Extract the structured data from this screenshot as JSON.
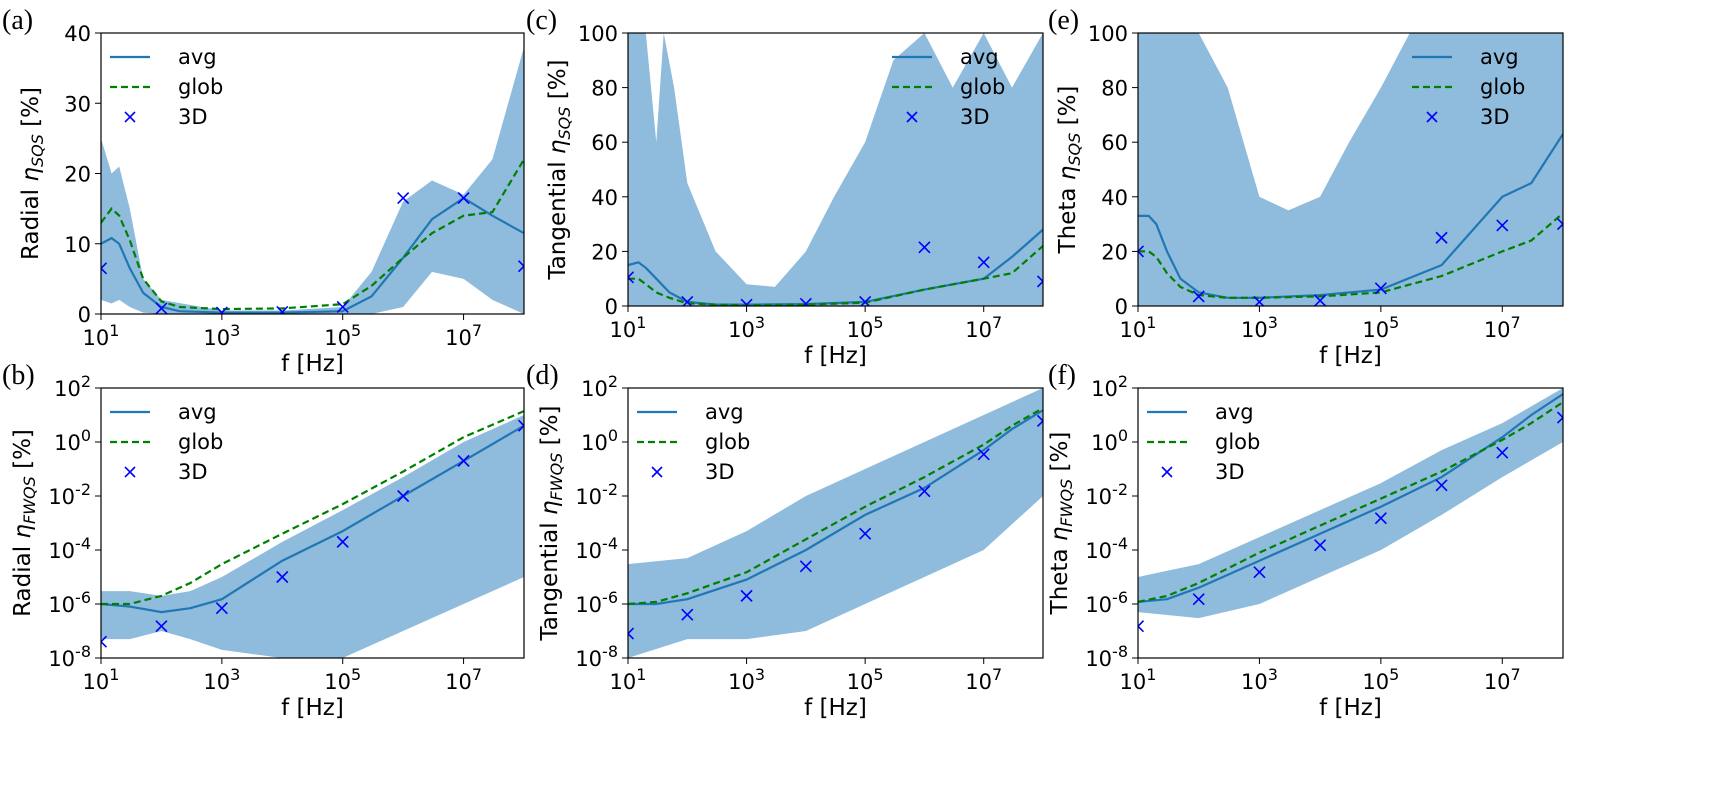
{
  "colors": {
    "avg": "#1f77b4",
    "glob": "#008000",
    "d3": "#0000ff",
    "band": "#8fbbdc"
  },
  "legend": {
    "avg": "avg",
    "glob": "glob",
    "d3": "3D"
  },
  "chart_data": [
    {
      "panel": "(a)",
      "type": "line",
      "xscale": "log",
      "yscale": "linear",
      "xlabel": "f [Hz]",
      "ylabel": {
        "prefix": "Radial ",
        "symbol": "η",
        "sub": "SQS",
        "suffix": " [%]"
      },
      "xlim": [
        10,
        100000000
      ],
      "ylim": [
        0,
        40
      ],
      "xticks": [
        "10^1",
        "10^3",
        "10^5",
        "10^7"
      ],
      "yticks": [
        "0",
        "10",
        "20",
        "30",
        "40"
      ],
      "legend_position": "top-left",
      "grid": false,
      "series": [
        {
          "name": "avg",
          "style": "solid",
          "x": [
            10,
            15,
            20,
            30,
            50,
            100,
            200,
            1000,
            10000,
            100000,
            300000,
            1000000,
            3000000,
            10000000,
            30000000,
            100000000
          ],
          "y": [
            10,
            10.8,
            10,
            6.5,
            3,
            1,
            0.4,
            0.2,
            0.2,
            0.4,
            2.5,
            8,
            13.5,
            16.5,
            14,
            11.5
          ]
        },
        {
          "name": "glob",
          "style": "dashed",
          "x": [
            10,
            15,
            20,
            30,
            50,
            100,
            200,
            1000,
            10000,
            100000,
            300000,
            1000000,
            3000000,
            10000000,
            30000000,
            100000000
          ],
          "y": [
            13,
            15,
            14,
            10.5,
            5,
            1.8,
            1,
            0.7,
            0.8,
            1.4,
            4,
            8,
            11.5,
            14,
            14.5,
            22
          ]
        },
        {
          "name": "3D",
          "style": "marker-x",
          "x": [
            10,
            100,
            1000,
            10000,
            100000,
            1000000,
            10000000,
            100000000
          ],
          "y": [
            6.5,
            0.8,
            0.2,
            0.3,
            1,
            16.5,
            16.5,
            6.8
          ]
        }
      ],
      "band": {
        "x": [
          10,
          15,
          20,
          30,
          50,
          100,
          1000,
          10000,
          100000,
          300000,
          1000000,
          3000000,
          10000000,
          30000000,
          100000000
        ],
        "lower": [
          2,
          1.5,
          2,
          1,
          0.2,
          0,
          0,
          0,
          0,
          0,
          1,
          6,
          5,
          2,
          0
        ],
        "upper": [
          25,
          20,
          21,
          15,
          5,
          2,
          0.5,
          0.5,
          1,
          6,
          16,
          19,
          17,
          22,
          38
        ]
      }
    },
    {
      "panel": "(c)",
      "type": "line",
      "xscale": "log",
      "yscale": "linear",
      "xlabel": "f [Hz]",
      "ylabel": {
        "prefix": "Tangential ",
        "symbol": "η",
        "sub": "SQS",
        "suffix": " [%]"
      },
      "xlim": [
        10,
        100000000
      ],
      "ylim": [
        0,
        100
      ],
      "xticks": [
        "10^1",
        "10^3",
        "10^5",
        "10^7"
      ],
      "yticks": [
        "0",
        "20",
        "40",
        "60",
        "80",
        "100"
      ],
      "legend_position": "top-right",
      "grid": false,
      "series": [
        {
          "name": "avg",
          "style": "solid",
          "x": [
            10,
            15,
            20,
            30,
            50,
            100,
            300,
            1000,
            10000,
            100000,
            1000000,
            10000000,
            30000000,
            100000000
          ],
          "y": [
            15,
            16,
            14,
            10,
            5,
            1.5,
            0.5,
            0.5,
            0.7,
            1.5,
            6,
            10,
            18,
            28
          ]
        },
        {
          "name": "glob",
          "style": "dashed",
          "x": [
            10,
            15,
            20,
            30,
            50,
            100,
            300,
            1000,
            10000,
            100000,
            1000000,
            10000000,
            30000000,
            100000000
          ],
          "y": [
            10,
            10,
            8,
            5,
            3,
            1,
            0.5,
            0.3,
            0.5,
            1.2,
            6,
            10,
            12,
            22
          ]
        },
        {
          "name": "3D",
          "style": "marker-x",
          "x": [
            10,
            100,
            1000,
            10000,
            100000,
            1000000,
            10000000,
            100000000
          ],
          "y": [
            10.5,
            1.5,
            0.5,
            0.8,
            1.5,
            21.5,
            16,
            9
          ]
        }
      ],
      "band": {
        "x": [
          10,
          20,
          30,
          40,
          60,
          100,
          300,
          1000,
          3000,
          10000,
          30000,
          100000,
          300000,
          1000000,
          3000000,
          10000000,
          30000000,
          100000000
        ],
        "lower": [
          0,
          0,
          0,
          0,
          0,
          0,
          0,
          0,
          0,
          0,
          0,
          0,
          0,
          0,
          0,
          0,
          0,
          0
        ],
        "upper": [
          100,
          100,
          60,
          100,
          80,
          45,
          20,
          8,
          7,
          20,
          40,
          60,
          90,
          100,
          80,
          100,
          80,
          100
        ]
      }
    },
    {
      "panel": "(e)",
      "type": "line",
      "xscale": "log",
      "yscale": "linear",
      "xlabel": "f [Hz]",
      "ylabel": {
        "prefix": "Theta ",
        "symbol": "η",
        "sub": "SQS",
        "suffix": " [%]"
      },
      "xlim": [
        10,
        100000000
      ],
      "ylim": [
        0,
        100
      ],
      "xticks": [
        "10^1",
        "10^3",
        "10^5",
        "10^7"
      ],
      "yticks": [
        "0",
        "20",
        "40",
        "60",
        "80",
        "100"
      ],
      "legend_position": "top-right",
      "grid": false,
      "series": [
        {
          "name": "avg",
          "style": "solid",
          "x": [
            10,
            15,
            20,
            30,
            50,
            100,
            300,
            1000,
            10000,
            100000,
            1000000,
            10000000,
            30000000,
            100000000
          ],
          "y": [
            33,
            33,
            30,
            20,
            10,
            5,
            3,
            3,
            4,
            6,
            15,
            40,
            45,
            63
          ]
        },
        {
          "name": "glob",
          "style": "dashed",
          "x": [
            10,
            15,
            20,
            30,
            50,
            100,
            300,
            1000,
            10000,
            100000,
            1000000,
            10000000,
            30000000,
            100000000
          ],
          "y": [
            20,
            20,
            18,
            12,
            7,
            4,
            3,
            3,
            3.5,
            5,
            11,
            20,
            24,
            34
          ]
        },
        {
          "name": "3D",
          "style": "marker-x",
          "x": [
            10,
            100,
            1000,
            10000,
            100000,
            1000000,
            10000000,
            100000000
          ],
          "y": [
            20,
            3.5,
            1.5,
            2,
            6.5,
            25,
            29.5,
            30
          ]
        }
      ],
      "band": {
        "x": [
          10,
          30,
          100,
          300,
          1000,
          3000,
          10000,
          30000,
          100000,
          300000,
          1000000,
          3000000,
          10000000,
          30000000,
          100000000
        ],
        "lower": [
          0,
          0,
          0,
          0,
          0,
          0,
          0,
          0,
          0,
          0,
          0,
          0,
          0,
          0,
          0
        ],
        "upper": [
          100,
          100,
          100,
          80,
          40,
          35,
          40,
          60,
          80,
          100,
          100,
          100,
          100,
          100,
          100
        ]
      }
    },
    {
      "panel": "(b)",
      "type": "line",
      "xscale": "log",
      "yscale": "log",
      "xlabel": "f [Hz]",
      "ylabel": {
        "prefix": "Radial ",
        "symbol": "η",
        "sub": "FWQS",
        "suffix": " [%]"
      },
      "xlim": [
        10,
        100000000
      ],
      "ylim": [
        1e-08,
        100
      ],
      "xticks": [
        "10^1",
        "10^3",
        "10^5",
        "10^7"
      ],
      "yticks": [
        "10^-8",
        "10^-6",
        "10^-4",
        "10^-2",
        "10^0",
        "10^2"
      ],
      "legend_position": "top-left",
      "grid": false,
      "series": [
        {
          "name": "avg",
          "style": "solid",
          "x": [
            10,
            30,
            100,
            300,
            1000,
            10000,
            100000,
            1000000,
            10000000,
            100000000
          ],
          "y": [
            1e-06,
            8e-07,
            5e-07,
            7e-07,
            1.5e-06,
            4e-05,
            0.0005,
            0.01,
            0.2,
            4
          ]
        },
        {
          "name": "glob",
          "style": "dashed",
          "x": [
            10,
            30,
            100,
            300,
            1000,
            10000,
            100000,
            1000000,
            10000000,
            100000000
          ],
          "y": [
            1e-06,
            1e-06,
            2e-06,
            6e-06,
            3e-05,
            0.0004,
            0.005,
            0.08,
            1.5,
            14
          ]
        },
        {
          "name": "3D",
          "style": "marker-x",
          "x": [
            10,
            100,
            1000,
            10000,
            100000,
            1000000,
            10000000,
            100000000
          ],
          "y": [
            4e-08,
            1.5e-07,
            7e-07,
            1e-05,
            0.0002,
            0.01,
            0.2,
            4
          ]
        }
      ],
      "band": {
        "x": [
          10,
          30,
          100,
          300,
          1000,
          10000,
          100000,
          1000000,
          10000000,
          100000000
        ],
        "lower": [
          5e-08,
          5e-08,
          1e-07,
          5e-08,
          2e-08,
          1e-08,
          1e-08,
          1e-07,
          1e-06,
          1e-05
        ],
        "upper": [
          3e-06,
          3e-06,
          2e-06,
          3e-06,
          1e-05,
          0.0002,
          0.003,
          0.05,
          1,
          10
        ]
      }
    },
    {
      "panel": "(d)",
      "type": "line",
      "xscale": "log",
      "yscale": "log",
      "xlabel": "f [Hz]",
      "ylabel": {
        "prefix": "Tangential ",
        "symbol": "η",
        "sub": "FWQS",
        "suffix": " [%]"
      },
      "xlim": [
        10,
        100000000
      ],
      "ylim": [
        1e-08,
        100
      ],
      "xticks": [
        "10^1",
        "10^3",
        "10^5",
        "10^7"
      ],
      "yticks": [
        "10^-8",
        "10^-6",
        "10^-4",
        "10^-2",
        "10^0",
        "10^2"
      ],
      "legend_position": "top-left",
      "grid": false,
      "series": [
        {
          "name": "avg",
          "style": "solid",
          "x": [
            10,
            30,
            100,
            1000,
            10000,
            100000,
            1000000,
            10000000,
            30000000,
            100000000
          ],
          "y": [
            1e-06,
            1e-06,
            1.5e-06,
            8e-06,
            0.0001,
            0.002,
            0.02,
            0.5,
            3,
            15
          ]
        },
        {
          "name": "glob",
          "style": "dashed",
          "x": [
            10,
            30,
            100,
            1000,
            10000,
            100000,
            1000000,
            10000000,
            30000000,
            100000000
          ],
          "y": [
            1e-06,
            1.2e-06,
            2.5e-06,
            1.5e-05,
            0.00025,
            0.004,
            0.05,
            0.8,
            4,
            18
          ]
        },
        {
          "name": "3D",
          "style": "marker-x",
          "x": [
            10,
            100,
            1000,
            10000,
            100000,
            1000000,
            10000000,
            100000000
          ],
          "y": [
            8e-08,
            4e-07,
            2e-06,
            2.5e-05,
            0.0004,
            0.015,
            0.35,
            6
          ]
        }
      ],
      "band": {
        "x": [
          10,
          100,
          1000,
          10000,
          100000,
          1000000,
          10000000,
          100000000
        ],
        "lower": [
          1e-08,
          5e-08,
          5e-08,
          1e-07,
          1e-06,
          1e-05,
          0.0001,
          0.01
        ],
        "upper": [
          3e-05,
          5e-05,
          0.0005,
          0.01,
          0.1,
          1,
          10,
          100
        ]
      }
    },
    {
      "panel": "(f)",
      "type": "line",
      "xscale": "log",
      "yscale": "log",
      "xlabel": "f [Hz]",
      "ylabel": {
        "prefix": "Theta ",
        "symbol": "η",
        "sub": "FWQS",
        "suffix": " [%]"
      },
      "xlim": [
        10,
        100000000
      ],
      "ylim": [
        1e-08,
        100
      ],
      "xticks": [
        "10^1",
        "10^3",
        "10^5",
        "10^7"
      ],
      "yticks": [
        "10^-8",
        "10^-6",
        "10^-4",
        "10^-2",
        "10^0",
        "10^2"
      ],
      "legend_position": "top-left",
      "grid": false,
      "series": [
        {
          "name": "avg",
          "style": "solid",
          "x": [
            10,
            30,
            100,
            1000,
            10000,
            100000,
            1000000,
            10000000,
            30000000,
            100000000
          ],
          "y": [
            1.2e-06,
            1.5e-06,
            4e-06,
            4e-05,
            0.0004,
            0.004,
            0.05,
            1.5,
            10,
            60
          ]
        },
        {
          "name": "glob",
          "style": "dashed",
          "x": [
            10,
            30,
            100,
            1000,
            10000,
            100000,
            1000000,
            10000000,
            30000000,
            100000000
          ],
          "y": [
            1.2e-06,
            2e-06,
            6e-06,
            8e-05,
            0.0008,
            0.008,
            0.08,
            1.2,
            5,
            30
          ]
        },
        {
          "name": "3D",
          "style": "marker-x",
          "x": [
            10,
            100,
            1000,
            10000,
            100000,
            1000000,
            10000000,
            100000000
          ],
          "y": [
            1.5e-07,
            1.5e-06,
            1.5e-05,
            0.00015,
            0.0015,
            0.025,
            0.4,
            8
          ]
        }
      ],
      "band": {
        "x": [
          10,
          100,
          1000,
          10000,
          100000,
          1000000,
          10000000,
          100000000
        ],
        "lower": [
          5e-07,
          3e-07,
          1e-06,
          1e-05,
          0.0001,
          0.002,
          0.05,
          1
        ],
        "upper": [
          1e-05,
          3e-05,
          0.0003,
          0.003,
          0.03,
          0.5,
          5,
          100
        ]
      }
    }
  ]
}
